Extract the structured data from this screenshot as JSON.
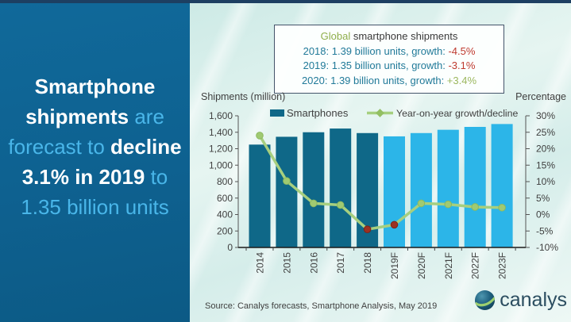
{
  "panel": {
    "headline_segments": [
      {
        "text": "Smartphone shipments",
        "style": "strong"
      },
      {
        "text": " are forecast to ",
        "style": "light"
      },
      {
        "text": "decline 3.1% in 2019",
        "style": "strong"
      },
      {
        "text": " to ",
        "style": "light"
      },
      {
        "text": "1.35 billion units",
        "style": "light"
      }
    ]
  },
  "info_box": {
    "title_segments": [
      {
        "text": "Global ",
        "tone": "green"
      },
      {
        "text": "smartphone shipments",
        "tone": "dark"
      }
    ],
    "lines": [
      {
        "prefix": "2018: 1.39 billion units, growth: ",
        "value": "-4.5%",
        "tone": "red"
      },
      {
        "prefix": "2019: 1.35 billion units, growth: ",
        "value": "-3.1%",
        "tone": "red"
      },
      {
        "prefix": "2020: 1.39 billion units, growth: ",
        "value": "+3.4%",
        "tone": "green"
      }
    ]
  },
  "chart_data": {
    "type": "bar+line",
    "categories": [
      "2014",
      "2015",
      "2016",
      "2017",
      "2018",
      "2019F",
      "2020F",
      "2021F",
      "2022F",
      "2023F"
    ],
    "series": [
      {
        "name": "Smartphones",
        "type": "bar",
        "axis": "left",
        "values": [
          1250,
          1345,
          1400,
          1445,
          1390,
          1350,
          1390,
          1430,
          1465,
          1500
        ],
        "point_styles": [
          "actual",
          "actual",
          "actual",
          "actual",
          "actual",
          "forecast",
          "forecast",
          "forecast",
          "forecast",
          "forecast"
        ]
      },
      {
        "name": "Year-on-year growth/decline",
        "type": "line",
        "axis": "right",
        "values": [
          24,
          10.2,
          3.4,
          2.9,
          -4.5,
          -3.1,
          3.4,
          3.1,
          2.3,
          2.1
        ],
        "marker_tones": [
          "green",
          "green",
          "green",
          "green",
          "red",
          "red",
          "green",
          "green",
          "green",
          "green"
        ]
      }
    ],
    "left_axis": {
      "title": "Shipments (million)",
      "min": 0,
      "max": 1600,
      "step": 200
    },
    "right_axis": {
      "title": "Percentage",
      "min": -10,
      "max": 30,
      "step": 5,
      "unit": "%"
    },
    "legend_position": "top",
    "grid": false
  },
  "colors": {
    "bar_actual": "#0f6888",
    "bar_forecast": "#2cb5e8",
    "line": "#a6cf7f",
    "legend_marker": "#93bf63",
    "marker_positive": "#a0ca72",
    "marker_positive_stroke": "#8db95e",
    "marker_negative": "#9c3122",
    "marker_negative_stroke": "#7c2418",
    "chart_text": "#3f3f3f",
    "axis_line": "#555555",
    "baseline": "#1a1a1a"
  },
  "source": {
    "text": "Source: Canalys forecasts, Smartphone Analysis, May 2019"
  },
  "logo": {
    "text": "canalys"
  }
}
